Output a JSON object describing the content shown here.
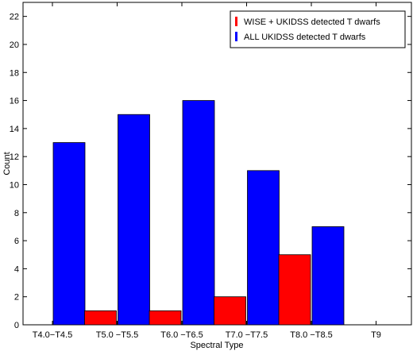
{
  "chart_data": {
    "type": "bar",
    "title": "",
    "xlabel": "Spectral Type",
    "ylabel": "Count",
    "ylim": [
      0,
      23
    ],
    "yticks": [
      0,
      2,
      4,
      6,
      8,
      10,
      12,
      14,
      16,
      18,
      20,
      22
    ],
    "categories": [
      "T4.0−T4.5",
      "T5.0 −T5.5",
      "T6.0 −T6.5",
      "T7.0 −T7.5",
      "T8.0 −T8.5",
      "T9"
    ],
    "series": [
      {
        "name": "WISE + UKIDSS detected T dwarfs",
        "color": "#ff0000",
        "values": [
          0,
          1,
          1,
          2,
          5,
          0
        ]
      },
      {
        "name": "ALL UKIDSS detected T dwarfs",
        "color": "#0000ff",
        "values": [
          13,
          15,
          16,
          11,
          7,
          0
        ]
      }
    ],
    "grid": false,
    "legend_position": "top-right"
  }
}
